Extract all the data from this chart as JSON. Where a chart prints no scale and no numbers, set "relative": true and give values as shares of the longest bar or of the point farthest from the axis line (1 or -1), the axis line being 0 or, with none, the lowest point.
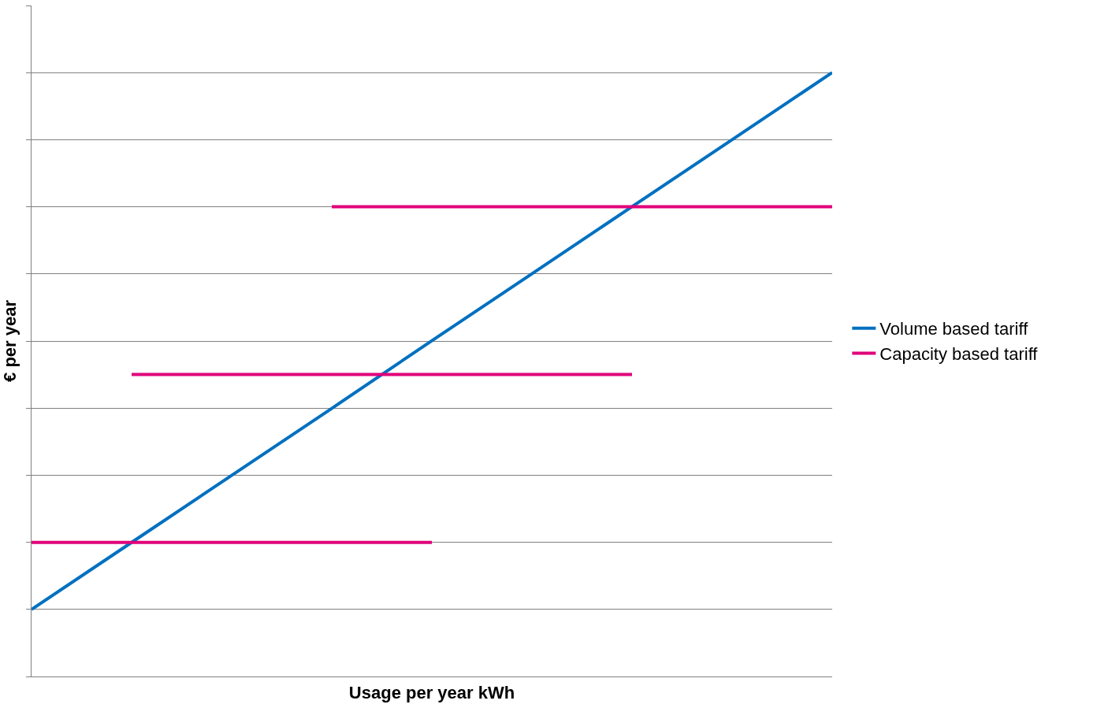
{
  "chart_data": {
    "type": "line",
    "relative": true,
    "xlabel": "Usage per year kWh",
    "ylabel": "€ per year",
    "grid": "y",
    "legend": "right",
    "marker": "none",
    "line_style": "solid",
    "categories": [
      null,
      null,
      null,
      null,
      null,
      null,
      null,
      null,
      null
    ],
    "series": [
      {
        "name": "Volume based tariff",
        "color": "#0070c0",
        "values": [
          0.111,
          0.222,
          0.333,
          0.444,
          0.556,
          0.667,
          0.778,
          0.889,
          1.0
        ]
      },
      {
        "name": "Capacity based tariff",
        "color": "#e0007a",
        "values": [
          0.222,
          0.222,
          0.222,
          0.222,
          0.222,
          null,
          null,
          null,
          null
        ]
      },
      {
        "color": "#e0007a",
        "values": [
          null,
          0.5,
          0.5,
          0.5,
          0.5,
          0.5,
          0.5,
          null,
          null
        ]
      },
      {
        "color": "#e0007a",
        "values": [
          null,
          null,
          null,
          0.778,
          0.778,
          0.778,
          0.778,
          0.778,
          0.778
        ]
      }
    ]
  }
}
